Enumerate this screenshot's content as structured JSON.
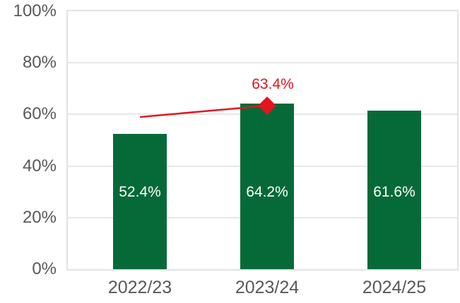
{
  "chart_data": {
    "type": "bar",
    "title": "",
    "xlabel": "",
    "ylabel": "",
    "categories": [
      "2022/23",
      "2023/24",
      "2024/25"
    ],
    "ytick_labels_top_down": [
      "100%",
      "80%",
      "60%",
      "40%",
      "20%",
      "0%"
    ],
    "ylim": [
      0,
      100
    ],
    "grid": true,
    "legend": "none",
    "series": [
      {
        "name": "bar-series",
        "type": "bar",
        "color": "#066A38",
        "values": [
          52.4,
          64.2,
          61.6
        ],
        "data_labels": [
          "52.4%",
          "64.2%",
          "61.6%"
        ],
        "data_label_color": "#FFFFFF"
      },
      {
        "name": "line-series",
        "type": "line",
        "color": "#E2151E",
        "x_indices": [
          0,
          1
        ],
        "values": [
          59.0,
          63.4
        ],
        "marker": "diamond",
        "marker_point": {
          "x_index": 1,
          "value": 63.4,
          "label": "63.4%",
          "label_color": "#E2151E"
        }
      }
    ],
    "colors": {
      "bar_green": "#066A38",
      "line_red": "#E2151E",
      "axis_text": "#595959",
      "gridline": "#E7E7E7",
      "background": "#FFFFFF"
    }
  }
}
